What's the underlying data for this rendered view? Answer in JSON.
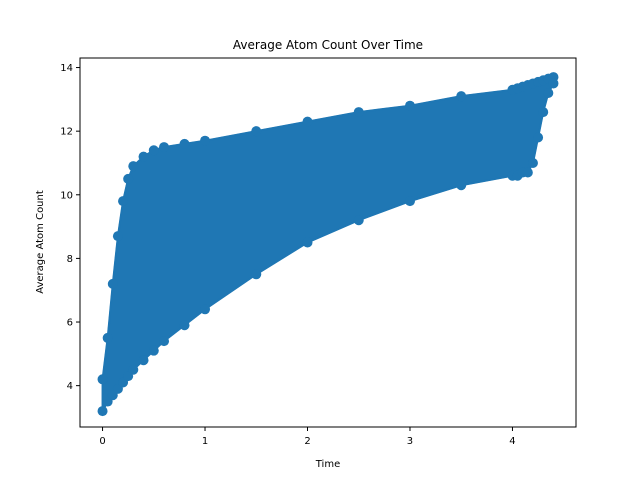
{
  "chart_data": {
    "type": "line",
    "title": "Average Atom Count Over Time",
    "xlabel": "Time",
    "ylabel": "Average Atom Count",
    "xlim": [
      -0.22,
      4.62
    ],
    "ylim": [
      2.7,
      14.3
    ],
    "xticks": [
      0,
      1,
      2,
      3,
      4
    ],
    "yticks": [
      4,
      6,
      8,
      10,
      12,
      14
    ],
    "grid": false,
    "legend": "none",
    "markers": true,
    "color": "#1f77b4",
    "series": [
      {
        "x": [
          0.0,
          0.05,
          0.1,
          0.15,
          0.2,
          0.25,
          0.3,
          0.4,
          0.5,
          0.6,
          0.8,
          1.0,
          1.5,
          2.0,
          2.5,
          3.0,
          3.5,
          4.0,
          4.05,
          4.1,
          4.15,
          4.2,
          4.25,
          4.3,
          4.35,
          4.4
        ],
        "y_lower": [
          3.2,
          3.5,
          3.7,
          3.9,
          4.1,
          4.3,
          4.5,
          4.8,
          5.1,
          5.4,
          5.9,
          6.4,
          7.5,
          8.5,
          9.2,
          9.8,
          10.3,
          10.6,
          10.6,
          10.7,
          10.7,
          11.0,
          11.8,
          12.6,
          13.2,
          13.5
        ],
        "y_upper": [
          4.2,
          5.5,
          7.2,
          8.7,
          9.8,
          10.5,
          10.9,
          11.2,
          11.4,
          11.5,
          11.6,
          11.7,
          12.0,
          12.3,
          12.6,
          12.8,
          13.1,
          13.3,
          13.35,
          13.4,
          13.45,
          13.5,
          13.55,
          13.6,
          13.65,
          13.7
        ]
      }
    ]
  }
}
